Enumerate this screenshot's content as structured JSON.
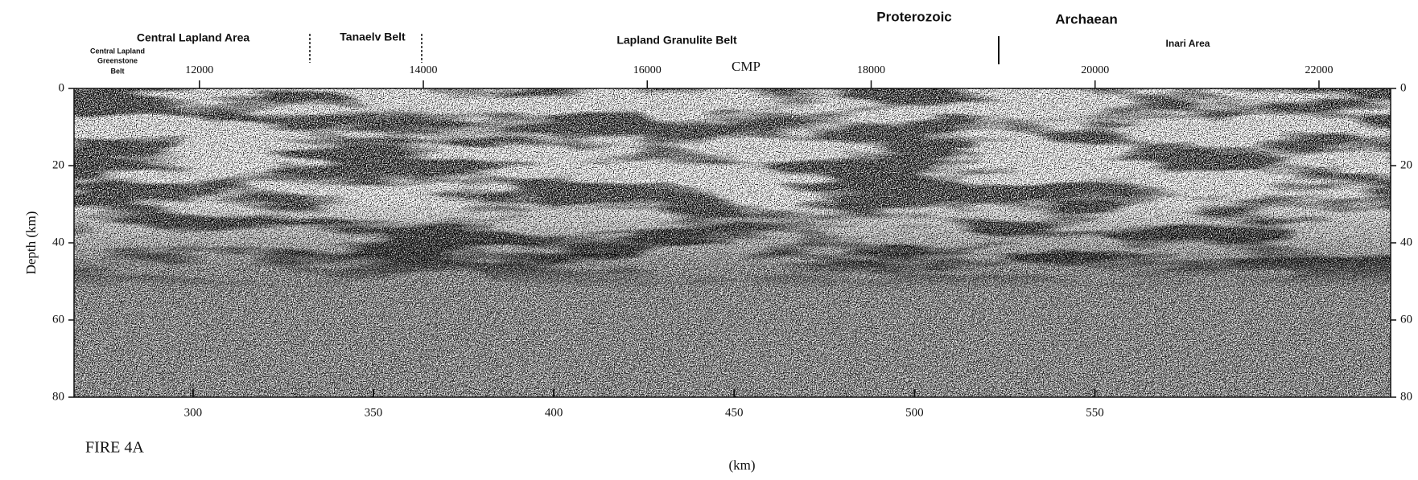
{
  "chart_data": {
    "type": "seismic-section",
    "panel_label": "FIRE 4A",
    "y_label": "Depth (km)",
    "ylim": [
      0,
      80
    ],
    "y_inverted": true,
    "yticks": [
      0,
      20,
      40,
      60,
      80
    ],
    "x_label": "(km)",
    "xlim": [
      267,
      632
    ],
    "xticks": [
      300,
      350,
      400,
      450,
      500,
      550
    ],
    "x2_label": "CMP",
    "x2lim": [
      10880,
      22640
    ],
    "x2ticks": [
      12000,
      14000,
      16000,
      18000,
      20000,
      22000
    ],
    "annotations": [
      {
        "text": "Proterozoic"
      },
      {
        "text": "Archaean"
      },
      {
        "text": "Central Lapland Area"
      },
      {
        "text": "Tanaelv Belt"
      },
      {
        "text": "Lapland Granulite Belt"
      },
      {
        "text": "Inari Area"
      },
      {
        "text": "Central Lapland"
      },
      {
        "text": "Greenstone"
      },
      {
        "text": "Belt"
      }
    ]
  }
}
